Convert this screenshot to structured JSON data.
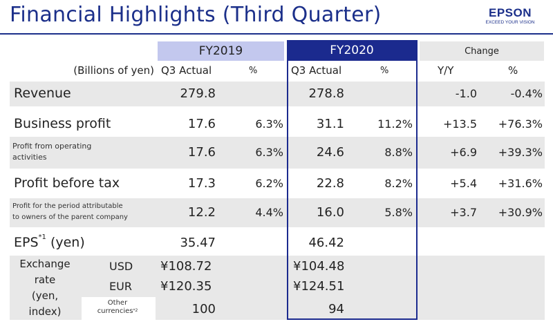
{
  "title": "Financial Highlights (Third Quarter)",
  "logo": {
    "name": "EPSON",
    "tagline": "EXCEED YOUR VISION"
  },
  "columns": {
    "fy2019": "FY2019",
    "fy2020": "FY2020",
    "change": "Change",
    "units": "(Billions of yen)",
    "q3_actual": "Q3 Actual",
    "pct": "%",
    "yy": "Y/Y"
  },
  "rows": [
    {
      "label": "Revenue",
      "fy2019_q3": "279.8",
      "fy2019_pct": "",
      "fy2020_q3": "278.8",
      "fy2020_pct": "",
      "change_yy": "-1.0",
      "change_pct": "-0.4%"
    },
    {
      "label": "Business profit",
      "fy2019_q3": "17.6",
      "fy2019_pct": "6.3%",
      "fy2020_q3": "31.1",
      "fy2020_pct": "11.2%",
      "change_yy": "+13.5",
      "change_pct": "+76.3%"
    },
    {
      "label_line1": "Profit from operating",
      "label_line2": "activities",
      "fy2019_q3": "17.6",
      "fy2019_pct": "6.3%",
      "fy2020_q3": "24.6",
      "fy2020_pct": "8.8%",
      "change_yy": "+6.9",
      "change_pct": "+39.3%"
    },
    {
      "label": "Profit before tax",
      "fy2019_q3": "17.3",
      "fy2019_pct": "6.2%",
      "fy2020_q3": "22.8",
      "fy2020_pct": "8.2%",
      "change_yy": "+5.4",
      "change_pct": "+31.6%"
    },
    {
      "label_line1": "Profit for the period attributable",
      "label_line2": "to owners of the parent company",
      "fy2019_q3": "12.2",
      "fy2019_pct": "4.4%",
      "fy2020_q3": "16.0",
      "fy2020_pct": "5.8%",
      "change_yy": "+3.7",
      "change_pct": "+30.9%"
    }
  ],
  "eps": {
    "label": "EPS",
    "footnote": "*1",
    "unit": "(yen)",
    "fy2019": "35.47",
    "fy2020": "46.42"
  },
  "exchange": {
    "label_line1": "Exchange",
    "label_line2": "rate",
    "label_line3": "(yen,",
    "label_line4": "index)",
    "usd": {
      "label": "USD",
      "fy2019": "¥108.72",
      "fy2020": "¥104.48"
    },
    "eur": {
      "label": "EUR",
      "fy2019": "¥120.35",
      "fy2020": "¥124.51"
    },
    "other": {
      "label_line1": "Other",
      "label_line2": "currencies",
      "footnote": "*2",
      "fy2019": "100",
      "fy2020": "94"
    }
  }
}
